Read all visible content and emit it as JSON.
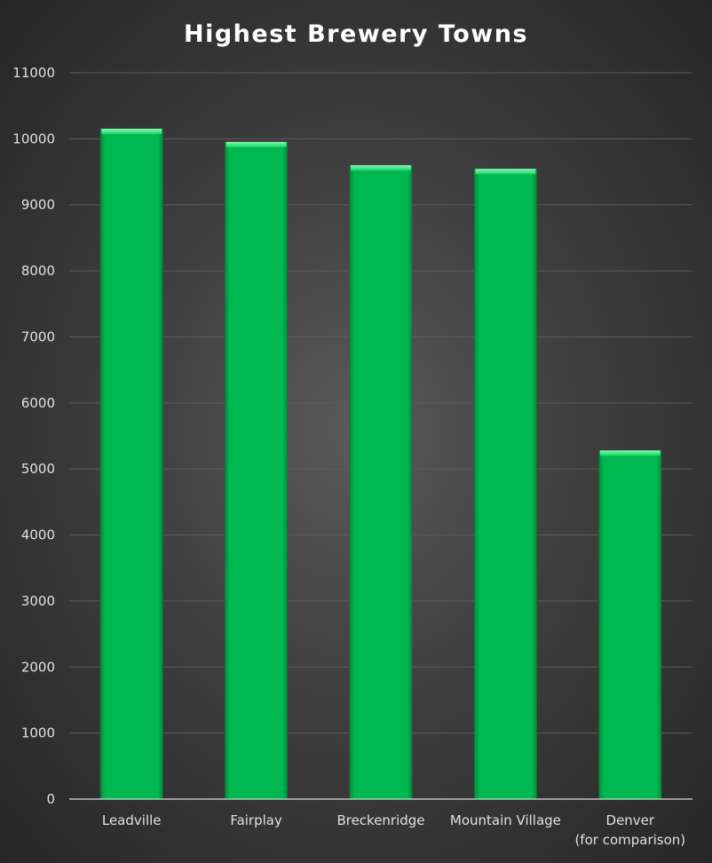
{
  "chart_data": {
    "type": "bar",
    "title": "Highest Brewery Towns",
    "xlabel": "",
    "ylabel": "",
    "categories": [
      [
        "Leadville"
      ],
      [
        "Fairplay"
      ],
      [
        "Breckenridge"
      ],
      [
        "Mountain Village"
      ],
      [
        "Denver",
        "(for comparison)"
      ]
    ],
    "values": [
      10152,
      9953,
      9600,
      9545,
      5280
    ],
    "ylim": [
      0,
      11000
    ],
    "yticks": [
      0,
      1000,
      2000,
      3000,
      4000,
      5000,
      6000,
      7000,
      8000,
      9000,
      10000,
      11000
    ],
    "grid": true,
    "legend": "none",
    "colors": {
      "bar": "#00b850",
      "bar_edge": "#0a7a3a",
      "bar_highlight": "#5dff9a"
    }
  }
}
